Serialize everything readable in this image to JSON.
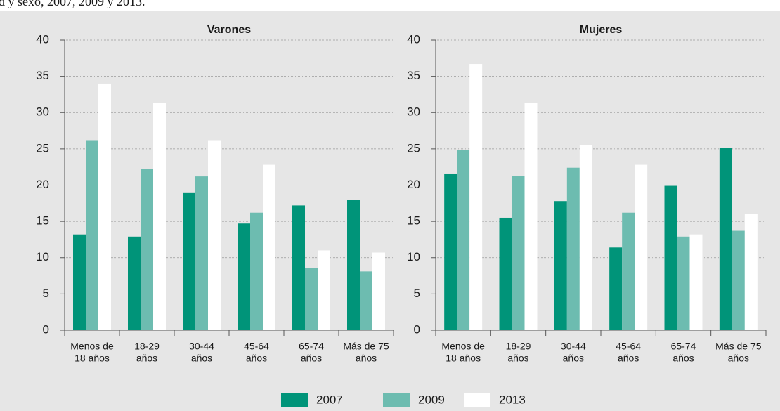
{
  "header": {
    "text": "d y sexo, 2007, 2009 y 2013."
  },
  "chart_data": [
    {
      "type": "bar",
      "title": "Varones",
      "categories": [
        [
          "Menos de",
          "18 años"
        ],
        [
          "18-29",
          "años"
        ],
        [
          "30-44",
          "años"
        ],
        [
          "45-64",
          "años"
        ],
        [
          "65-74",
          "años"
        ],
        [
          "Más de 75",
          "años"
        ]
      ],
      "series": [
        {
          "name": "2007",
          "color": "#009479",
          "values": [
            13.2,
            12.9,
            19,
            14.7,
            17.2,
            18
          ]
        },
        {
          "name": "2009",
          "color": "#6dbcb0",
          "values": [
            26.2,
            22.2,
            21.2,
            16.2,
            8.6,
            8.1
          ]
        },
        {
          "name": "2013",
          "color": "#ffffff",
          "values": [
            34,
            31.3,
            26.2,
            22.8,
            11,
            10.7
          ]
        }
      ],
      "ylim": [
        0,
        40
      ],
      "yticks": [
        0,
        5,
        10,
        15,
        20,
        25,
        30,
        35,
        40
      ],
      "grid": true
    },
    {
      "type": "bar",
      "title": "Mujeres",
      "categories": [
        [
          "Menos de",
          "18 años"
        ],
        [
          "18-29",
          "años"
        ],
        [
          "30-44",
          "años"
        ],
        [
          "45-64",
          "años"
        ],
        [
          "65-74",
          "años"
        ],
        [
          "Más de 75",
          "años"
        ]
      ],
      "series": [
        {
          "name": "2007",
          "color": "#009479",
          "values": [
            21.6,
            15.5,
            17.8,
            11.4,
            19.9,
            25.1
          ]
        },
        {
          "name": "2009",
          "color": "#6dbcb0",
          "values": [
            24.8,
            21.3,
            22.4,
            16.2,
            12.9,
            13.7
          ]
        },
        {
          "name": "2013",
          "color": "#ffffff",
          "values": [
            36.7,
            31.3,
            25.5,
            22.8,
            13.2,
            16
          ]
        }
      ],
      "ylim": [
        0,
        40
      ],
      "yticks": [
        0,
        5,
        10,
        15,
        20,
        25,
        30,
        35,
        40
      ],
      "grid": true
    }
  ]
}
